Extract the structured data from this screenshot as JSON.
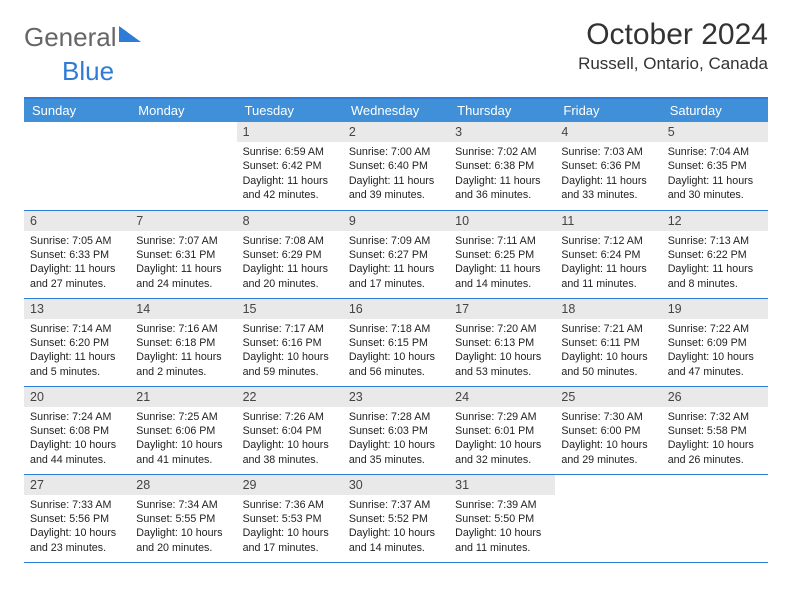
{
  "logo": {
    "part1": "General",
    "part2": "Blue"
  },
  "title": "October 2024",
  "location": "Russell, Ontario, Canada",
  "header_bg": "#3f8fd9",
  "border_color": "#2e7cd6",
  "daynum_bg": "#e9e9e9",
  "day_names": [
    "Sunday",
    "Monday",
    "Tuesday",
    "Wednesday",
    "Thursday",
    "Friday",
    "Saturday"
  ],
  "weeks": [
    [
      null,
      null,
      {
        "n": "1",
        "sr": "6:59 AM",
        "ss": "6:42 PM",
        "dl": "11 hours and 42 minutes."
      },
      {
        "n": "2",
        "sr": "7:00 AM",
        "ss": "6:40 PM",
        "dl": "11 hours and 39 minutes."
      },
      {
        "n": "3",
        "sr": "7:02 AM",
        "ss": "6:38 PM",
        "dl": "11 hours and 36 minutes."
      },
      {
        "n": "4",
        "sr": "7:03 AM",
        "ss": "6:36 PM",
        "dl": "11 hours and 33 minutes."
      },
      {
        "n": "5",
        "sr": "7:04 AM",
        "ss": "6:35 PM",
        "dl": "11 hours and 30 minutes."
      }
    ],
    [
      {
        "n": "6",
        "sr": "7:05 AM",
        "ss": "6:33 PM",
        "dl": "11 hours and 27 minutes."
      },
      {
        "n": "7",
        "sr": "7:07 AM",
        "ss": "6:31 PM",
        "dl": "11 hours and 24 minutes."
      },
      {
        "n": "8",
        "sr": "7:08 AM",
        "ss": "6:29 PM",
        "dl": "11 hours and 20 minutes."
      },
      {
        "n": "9",
        "sr": "7:09 AM",
        "ss": "6:27 PM",
        "dl": "11 hours and 17 minutes."
      },
      {
        "n": "10",
        "sr": "7:11 AM",
        "ss": "6:25 PM",
        "dl": "11 hours and 14 minutes."
      },
      {
        "n": "11",
        "sr": "7:12 AM",
        "ss": "6:24 PM",
        "dl": "11 hours and 11 minutes."
      },
      {
        "n": "12",
        "sr": "7:13 AM",
        "ss": "6:22 PM",
        "dl": "11 hours and 8 minutes."
      }
    ],
    [
      {
        "n": "13",
        "sr": "7:14 AM",
        "ss": "6:20 PM",
        "dl": "11 hours and 5 minutes."
      },
      {
        "n": "14",
        "sr": "7:16 AM",
        "ss": "6:18 PM",
        "dl": "11 hours and 2 minutes."
      },
      {
        "n": "15",
        "sr": "7:17 AM",
        "ss": "6:16 PM",
        "dl": "10 hours and 59 minutes."
      },
      {
        "n": "16",
        "sr": "7:18 AM",
        "ss": "6:15 PM",
        "dl": "10 hours and 56 minutes."
      },
      {
        "n": "17",
        "sr": "7:20 AM",
        "ss": "6:13 PM",
        "dl": "10 hours and 53 minutes."
      },
      {
        "n": "18",
        "sr": "7:21 AM",
        "ss": "6:11 PM",
        "dl": "10 hours and 50 minutes."
      },
      {
        "n": "19",
        "sr": "7:22 AM",
        "ss": "6:09 PM",
        "dl": "10 hours and 47 minutes."
      }
    ],
    [
      {
        "n": "20",
        "sr": "7:24 AM",
        "ss": "6:08 PM",
        "dl": "10 hours and 44 minutes."
      },
      {
        "n": "21",
        "sr": "7:25 AM",
        "ss": "6:06 PM",
        "dl": "10 hours and 41 minutes."
      },
      {
        "n": "22",
        "sr": "7:26 AM",
        "ss": "6:04 PM",
        "dl": "10 hours and 38 minutes."
      },
      {
        "n": "23",
        "sr": "7:28 AM",
        "ss": "6:03 PM",
        "dl": "10 hours and 35 minutes."
      },
      {
        "n": "24",
        "sr": "7:29 AM",
        "ss": "6:01 PM",
        "dl": "10 hours and 32 minutes."
      },
      {
        "n": "25",
        "sr": "7:30 AM",
        "ss": "6:00 PM",
        "dl": "10 hours and 29 minutes."
      },
      {
        "n": "26",
        "sr": "7:32 AM",
        "ss": "5:58 PM",
        "dl": "10 hours and 26 minutes."
      }
    ],
    [
      {
        "n": "27",
        "sr": "7:33 AM",
        "ss": "5:56 PM",
        "dl": "10 hours and 23 minutes."
      },
      {
        "n": "28",
        "sr": "7:34 AM",
        "ss": "5:55 PM",
        "dl": "10 hours and 20 minutes."
      },
      {
        "n": "29",
        "sr": "7:36 AM",
        "ss": "5:53 PM",
        "dl": "10 hours and 17 minutes."
      },
      {
        "n": "30",
        "sr": "7:37 AM",
        "ss": "5:52 PM",
        "dl": "10 hours and 14 minutes."
      },
      {
        "n": "31",
        "sr": "7:39 AM",
        "ss": "5:50 PM",
        "dl": "10 hours and 11 minutes."
      },
      null,
      null
    ]
  ],
  "labels": {
    "sunrise": "Sunrise: ",
    "sunset": "Sunset: ",
    "daylight": "Daylight: "
  }
}
